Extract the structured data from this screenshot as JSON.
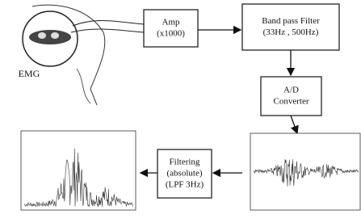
{
  "sensor": {
    "label": "EMG"
  },
  "nodes": [
    {
      "lines": [
        "Amp",
        "(x1000)"
      ]
    },
    {
      "lines": [
        "Band pass Filter",
        "(33Hz , 500Hz)"
      ]
    },
    {
      "lines": [
        "A/D",
        "Converter"
      ]
    },
    {
      "lines": [
        "Filtering",
        "(absolute)",
        "(LPF 3Hz)"
      ]
    }
  ]
}
